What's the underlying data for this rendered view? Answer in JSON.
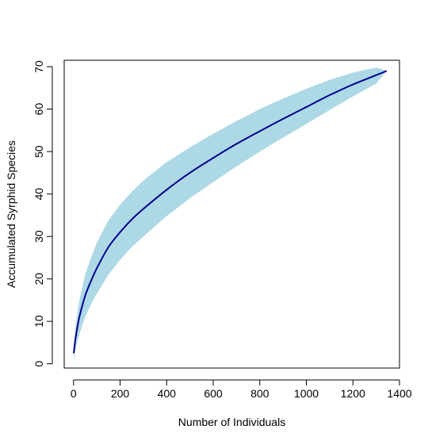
{
  "chart_data": {
    "type": "area",
    "title": "",
    "xlabel": "Number of Individuals",
    "ylabel": "Accumulated Syrphid Species",
    "xlim": [
      -40,
      1400
    ],
    "ylim": [
      -1,
      71.5
    ],
    "x_ticks": [
      0,
      200,
      400,
      600,
      800,
      1000,
      1200,
      1400
    ],
    "y_ticks": [
      0,
      10,
      20,
      30,
      40,
      50,
      60,
      70
    ],
    "grid": false,
    "legend": "none",
    "colors": {
      "band": "#add8e6",
      "line": "#00008b",
      "axes": "#000000"
    },
    "series": [
      {
        "x": [
          1,
          10,
          25,
          50,
          75,
          100,
          150,
          200,
          250,
          300,
          400,
          500,
          600,
          700,
          800,
          900,
          1000,
          1100,
          1200,
          1300,
          1345
        ],
        "y": [
          2.5,
          6.5,
          11.0,
          16.0,
          19.5,
          22.5,
          27.5,
          31.0,
          34.0,
          36.5,
          41.0,
          45.0,
          48.5,
          51.8,
          54.8,
          57.7,
          60.5,
          63.3,
          65.8,
          68.0,
          69.0
        ],
        "lower": [
          1.0,
          4.0,
          7.0,
          11.0,
          14.0,
          16.5,
          21.0,
          24.5,
          27.5,
          30.0,
          34.8,
          39.0,
          42.8,
          46.5,
          50.0,
          53.3,
          56.5,
          59.8,
          63.0,
          66.0,
          69.0
        ],
        "upper": [
          4.0,
          9.5,
          15.0,
          21.0,
          25.0,
          28.5,
          33.8,
          37.5,
          40.5,
          43.2,
          47.5,
          51.0,
          54.2,
          57.2,
          60.0,
          62.5,
          64.8,
          66.9,
          68.6,
          69.8,
          69.0
        ]
      }
    ]
  }
}
